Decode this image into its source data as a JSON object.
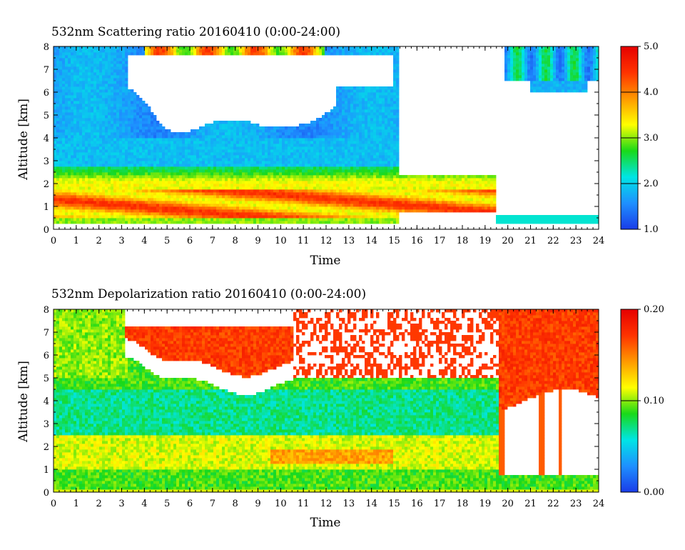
{
  "chart_data": [
    {
      "type": "heatmap",
      "title": "532nm Scattering ratio  20160410 (0:00-24:00)",
      "xlabel": "Time",
      "ylabel": "Altitude [km]",
      "xlim": [
        0,
        24
      ],
      "ylim": [
        0,
        8
      ],
      "x_ticks": [
        "0",
        "1",
        "2",
        "3",
        "4",
        "5",
        "6",
        "7",
        "8",
        "9",
        "10",
        "11",
        "12",
        "13",
        "14",
        "15",
        "16",
        "17",
        "18",
        "19",
        "20",
        "21",
        "22",
        "23",
        "24"
      ],
      "y_ticks": [
        "0",
        "1",
        "2",
        "3",
        "4",
        "5",
        "6",
        "7",
        "8"
      ],
      "colorbar": {
        "min": 1.0,
        "max": 5.0,
        "ticks": [
          "1.0",
          "2.0",
          "3.0",
          "4.0",
          "5.0"
        ]
      },
      "colorscale": [
        "#1a3ce8",
        "#1e90ff",
        "#00e5e5",
        "#19d919",
        "#ffff00",
        "#ff9900",
        "#ff3300",
        "#e60000"
      ]
    },
    {
      "type": "heatmap",
      "title": "532nm Depolarization ratio  20160410 (0:00-24:00)",
      "xlabel": "Time",
      "ylabel": "Altitude [km]",
      "xlim": [
        0,
        24
      ],
      "ylim": [
        0,
        8
      ],
      "x_ticks": [
        "0",
        "1",
        "2",
        "3",
        "4",
        "5",
        "6",
        "7",
        "8",
        "9",
        "10",
        "11",
        "12",
        "13",
        "14",
        "15",
        "16",
        "17",
        "18",
        "19",
        "20",
        "21",
        "22",
        "23",
        "24"
      ],
      "y_ticks": [
        "0",
        "1",
        "2",
        "3",
        "4",
        "5",
        "6",
        "7",
        "8"
      ],
      "colorbar": {
        "min": 0.0,
        "max": 0.2,
        "ticks": [
          "0.00",
          "0.10",
          "0.20"
        ]
      },
      "colorscale": [
        "#1a3ce8",
        "#1e90ff",
        "#00e5e5",
        "#19d919",
        "#ffff00",
        "#ff9900",
        "#ff3300",
        "#e60000"
      ]
    }
  ]
}
